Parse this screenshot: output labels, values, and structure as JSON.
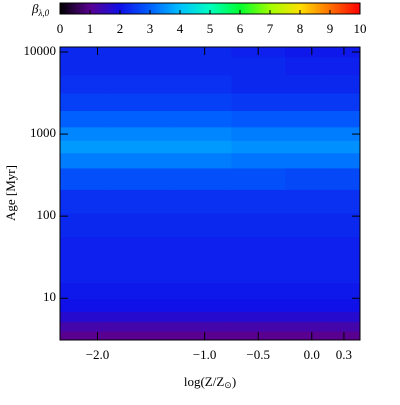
{
  "chart_data": {
    "type": "heatmap",
    "colorbar_label": "β",
    "colorbar_label_sub": "λ,0",
    "xlabel": "log(Z/Z",
    "xlabel_sub": "⊙",
    "xlabel_end": ")",
    "ylabel": "Age [Myr]",
    "x": [
      -2.2,
      -1.6,
      -1.0,
      -0.5,
      0.0,
      0.3
    ],
    "y": [
      3.5,
      4.5,
      6,
      8,
      12,
      20,
      40,
      80,
      150,
      300,
      500,
      700,
      1000,
      1500,
      2500,
      4000,
      7000,
      11000
    ],
    "z": [
      [
        1.0,
        1.0,
        1.0,
        1.0,
        1.0,
        1.0
      ],
      [
        1.3,
        1.3,
        1.3,
        1.3,
        1.3,
        1.3
      ],
      [
        1.7,
        1.7,
        1.7,
        1.7,
        1.7,
        1.7
      ],
      [
        2.0,
        2.0,
        2.0,
        2.0,
        2.0,
        2.0
      ],
      [
        2.1,
        2.1,
        2.1,
        2.1,
        2.1,
        2.1
      ],
      [
        2.2,
        2.2,
        2.2,
        2.2,
        2.2,
        2.2
      ],
      [
        2.2,
        2.2,
        2.2,
        2.2,
        2.2,
        2.2
      ],
      [
        2.3,
        2.3,
        2.3,
        2.3,
        2.3,
        2.3
      ],
      [
        2.4,
        2.4,
        2.4,
        2.4,
        2.4,
        2.4
      ],
      [
        2.8,
        2.8,
        2.8,
        2.8,
        2.7,
        2.7
      ],
      [
        3.3,
        3.3,
        3.3,
        3.2,
        3.2,
        3.2
      ],
      [
        3.6,
        3.6,
        3.6,
        3.5,
        3.5,
        3.5
      ],
      [
        3.4,
        3.4,
        3.4,
        3.3,
        3.3,
        3.3
      ],
      [
        3.0,
        3.0,
        3.0,
        2.9,
        2.9,
        2.9
      ],
      [
        2.6,
        2.6,
        2.6,
        2.5,
        2.5,
        2.5
      ],
      [
        2.4,
        2.4,
        2.4,
        2.3,
        2.3,
        2.3
      ],
      [
        2.3,
        2.3,
        2.3,
        2.3,
        2.2,
        2.2
      ],
      [
        2.3,
        2.3,
        2.3,
        2.2,
        2.1,
        2.1
      ]
    ],
    "xlim": [
      -2.35,
      0.45
    ],
    "xticks": [
      {
        "value": -2.0,
        "label": "−2.0"
      },
      {
        "value": -1.0,
        "label": "−1.0"
      },
      {
        "value": -0.5,
        "label": "−0.5"
      },
      {
        "value": 0.0,
        "label": "0.0"
      },
      0.3
    ],
    "ylim": [
      3.1,
      11500
    ],
    "yticks": [
      10,
      100,
      1000,
      10000
    ],
    "ylog": true,
    "clim": [
      0,
      10
    ],
    "cticks": [
      0,
      1,
      2,
      3,
      4,
      5,
      6,
      7,
      8,
      9,
      10
    ],
    "colormap": [
      "#000000",
      "#5a0090",
      "#1010e8",
      "#0060ff",
      "#00c0ff",
      "#00ffc0",
      "#00ff30",
      "#a0ff00",
      "#ffe000",
      "#ff7000",
      "#ff0000"
    ]
  }
}
